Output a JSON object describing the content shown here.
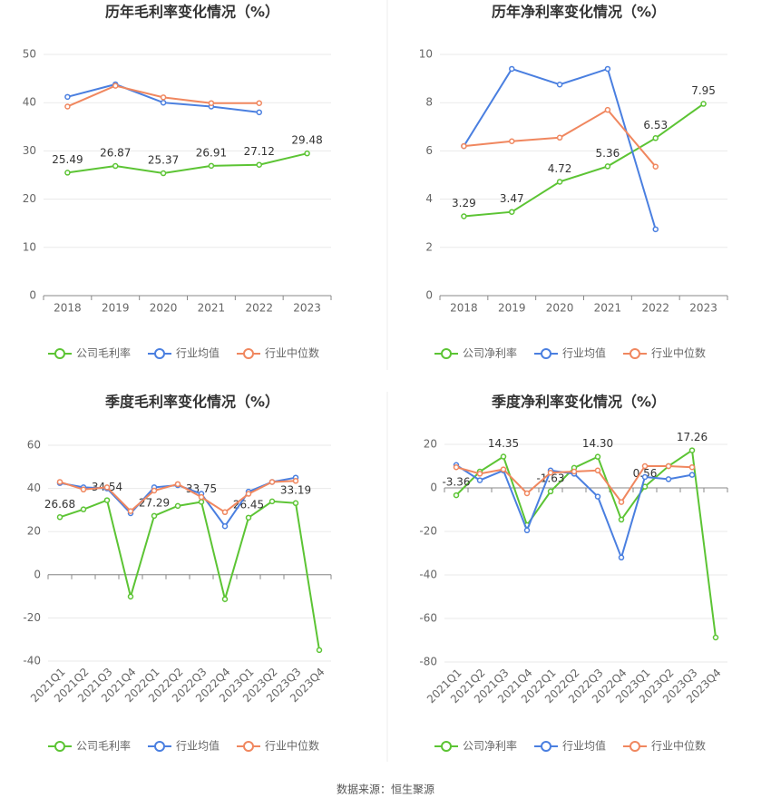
{
  "chart_data": [
    {
      "type": "line",
      "title": "历年毛利率变化情况（%）",
      "categories": [
        "2018",
        "2019",
        "2020",
        "2021",
        "2022",
        "2023"
      ],
      "ylim": [
        0,
        50
      ],
      "yticks": [
        0,
        10,
        20,
        30,
        40,
        50
      ],
      "grid": true,
      "series": [
        {
          "name": "公司毛利率",
          "color": "#5cc434",
          "values": [
            25.49,
            26.87,
            25.37,
            26.91,
            27.12,
            29.48
          ],
          "value_labels": [
            "25.49",
            "26.87",
            "25.37",
            "26.91",
            "27.12",
            "29.48"
          ]
        },
        {
          "name": "行业均值",
          "color": "#4a7fe0",
          "values": [
            41.2,
            43.8,
            40.0,
            39.2,
            38.0,
            null
          ]
        },
        {
          "name": "行业中位数",
          "color": "#f0875f",
          "values": [
            39.2,
            43.5,
            41.1,
            39.9,
            39.9,
            null
          ]
        }
      ]
    },
    {
      "type": "line",
      "title": "历年净利率变化情况（%）",
      "categories": [
        "2018",
        "2019",
        "2020",
        "2021",
        "2022",
        "2023"
      ],
      "ylim": [
        0,
        10
      ],
      "yticks": [
        0,
        2,
        4,
        6,
        8,
        10
      ],
      "grid": true,
      "series": [
        {
          "name": "公司净利率",
          "color": "#5cc434",
          "values": [
            3.29,
            3.47,
            4.72,
            5.36,
            6.53,
            7.95
          ],
          "value_labels": [
            "3.29",
            "3.47",
            "4.72",
            "5.36",
            "6.53",
            "7.95"
          ]
        },
        {
          "name": "行业均值",
          "color": "#4a7fe0",
          "values": [
            6.2,
            9.4,
            8.75,
            9.4,
            2.75,
            null
          ]
        },
        {
          "name": "行业中位数",
          "color": "#f0875f",
          "values": [
            6.2,
            6.4,
            6.55,
            7.7,
            5.35,
            null
          ]
        }
      ]
    },
    {
      "type": "line",
      "title": "季度毛利率变化情况（%）",
      "categories": [
        "2021Q1",
        "2021Q2",
        "2021Q3",
        "2021Q4",
        "2022Q1",
        "2022Q2",
        "2022Q3",
        "2022Q4",
        "2023Q1",
        "2023Q2",
        "2023Q3",
        "2023Q4"
      ],
      "ylim": [
        -40,
        60
      ],
      "yticks": [
        -40,
        -20,
        0,
        20,
        40,
        60
      ],
      "grid": true,
      "series": [
        {
          "name": "公司毛利率",
          "color": "#5cc434",
          "values": [
            26.68,
            30.3,
            34.54,
            -10.1,
            27.29,
            31.9,
            33.75,
            -11.3,
            26.45,
            34.0,
            33.19,
            -34.9
          ],
          "value_labels": [
            "26.68",
            null,
            "34.54",
            null,
            "27.29",
            null,
            "33.75",
            null,
            "26.45",
            null,
            "33.19",
            null
          ]
        },
        {
          "name": "行业均值",
          "color": "#4a7fe0",
          "values": [
            42.5,
            40.5,
            40.0,
            28.5,
            40.5,
            41.5,
            37.5,
            22.5,
            38.5,
            43.0,
            45.0,
            null
          ]
        },
        {
          "name": "行业中位数",
          "color": "#f0875f",
          "values": [
            43.0,
            39.5,
            40.5,
            29.5,
            39.0,
            42.0,
            36.0,
            29.0,
            37.5,
            43.0,
            43.5,
            null
          ]
        }
      ]
    },
    {
      "type": "line",
      "title": "季度净利率变化情况（%）",
      "categories": [
        "2021Q1",
        "2021Q2",
        "2021Q3",
        "2021Q4",
        "2022Q1",
        "2022Q2",
        "2022Q3",
        "2022Q4",
        "2023Q1",
        "2023Q2",
        "2023Q3",
        "2023Q4"
      ],
      "ylim": [
        -80,
        20
      ],
      "yticks": [
        -80,
        -60,
        -40,
        -20,
        0,
        20
      ],
      "grid": true,
      "series": [
        {
          "name": "公司净利率",
          "color": "#5cc434",
          "values": [
            -3.36,
            7.5,
            14.35,
            -17.1,
            -1.63,
            9.2,
            14.3,
            -14.6,
            0.56,
            10.0,
            17.26,
            -68.75
          ],
          "value_labels": [
            "-3.36",
            null,
            "14.35",
            null,
            "-1.63",
            null,
            "14.30",
            null,
            "0.56",
            null,
            "17.26",
            null
          ]
        },
        {
          "name": "行业均值",
          "color": "#4a7fe0",
          "values": [
            10.5,
            3.5,
            8.0,
            -19.5,
            8.0,
            6.5,
            -4.0,
            -32.0,
            5.0,
            4.0,
            6.0,
            null
          ]
        },
        {
          "name": "行业中位数",
          "color": "#f0875f",
          "values": [
            9.5,
            6.5,
            8.5,
            -2.5,
            7.0,
            7.5,
            8.0,
            -6.5,
            10.0,
            10.0,
            9.5,
            null
          ]
        }
      ]
    }
  ],
  "source": "数据来源：恒生聚源"
}
